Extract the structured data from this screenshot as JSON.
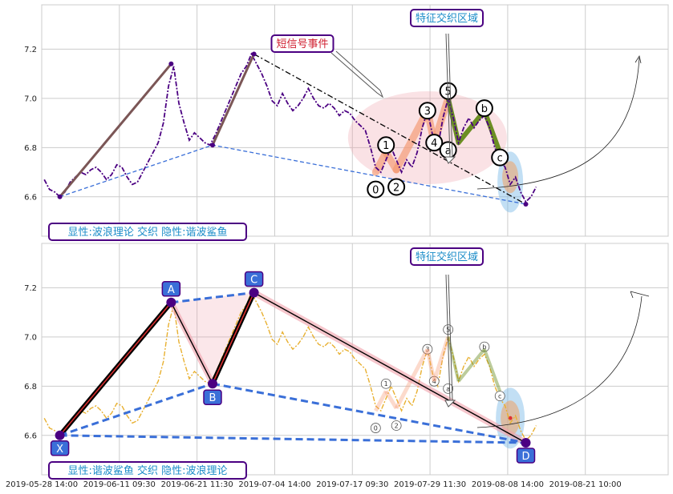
{
  "chart_data": {
    "type": "line",
    "x_ticks": [
      "2019-05-28 14:00",
      "2019-06-11 09:30",
      "2019-06-21 11:30",
      "2019-07-04 14:00",
      "2019-07-17 09:30",
      "2019-07-29 11:30",
      "2019-08-08 14:00",
      "2019-08-21 10:00"
    ],
    "y_ticks": [
      "6.6",
      "6.8",
      "7.0",
      "7.2"
    ],
    "ylim": [
      6.44,
      7.38
    ],
    "grid": true,
    "colors": {
      "price_top": "#4b0082",
      "price_bottom": "#e8b030",
      "wave": "#7b5656",
      "green": "#6b8e23",
      "box_text": "#1a8cc8",
      "box_border": "#4b0082",
      "pattern_label_bg": "#3a6fd8",
      "harmonic_dash": "#3a6fd8"
    },
    "price_series": [
      [
        0.5,
        6.67
      ],
      [
        1.5,
        6.63
      ],
      [
        2.5,
        6.62
      ],
      [
        3.5,
        6.6
      ],
      [
        4.5,
        6.62
      ],
      [
        5.5,
        6.66
      ],
      [
        6.5,
        6.68
      ],
      [
        7.5,
        6.7
      ],
      [
        8.5,
        6.69
      ],
      [
        9.5,
        6.71
      ],
      [
        10.5,
        6.72
      ],
      [
        11.5,
        6.7
      ],
      [
        12.5,
        6.67
      ],
      [
        13.5,
        6.69
      ],
      [
        14.5,
        6.73
      ],
      [
        15.5,
        6.72
      ],
      [
        16.5,
        6.68
      ],
      [
        17.5,
        6.65
      ],
      [
        18.5,
        6.66
      ],
      [
        19.5,
        6.7
      ],
      [
        20.5,
        6.74
      ],
      [
        21.5,
        6.78
      ],
      [
        22.5,
        6.82
      ],
      [
        23.5,
        6.9
      ],
      [
        24.5,
        7.05
      ],
      [
        25.5,
        7.13
      ],
      [
        26.5,
        6.98
      ],
      [
        27.5,
        6.9
      ],
      [
        28.5,
        6.83
      ],
      [
        29.5,
        6.86
      ],
      [
        30.5,
        6.84
      ],
      [
        31.5,
        6.82
      ],
      [
        32.5,
        6.81
      ],
      [
        33.5,
        6.85
      ],
      [
        34.5,
        6.9
      ],
      [
        35.5,
        6.95
      ],
      [
        36.5,
        7.0
      ],
      [
        37.5,
        7.05
      ],
      [
        38.5,
        7.1
      ],
      [
        39.5,
        7.13
      ],
      [
        40.5,
        7.18
      ],
      [
        41.5,
        7.14
      ],
      [
        42.5,
        7.1
      ],
      [
        43.5,
        7.05
      ],
      [
        44.5,
        6.99
      ],
      [
        45.5,
        6.97
      ],
      [
        46.5,
        7.02
      ],
      [
        47.5,
        6.98
      ],
      [
        48.5,
        6.95
      ],
      [
        49.5,
        6.97
      ],
      [
        50.5,
        7.0
      ],
      [
        51.5,
        7.04
      ],
      [
        52.5,
        7.0
      ],
      [
        53.5,
        6.97
      ],
      [
        54.5,
        6.96
      ],
      [
        55.5,
        6.98
      ],
      [
        56.5,
        6.96
      ],
      [
        57.5,
        6.93
      ],
      [
        58.5,
        6.95
      ],
      [
        59.5,
        6.94
      ],
      [
        60.5,
        6.91
      ],
      [
        61.5,
        6.89
      ],
      [
        62.5,
        6.87
      ],
      [
        63.5,
        6.8
      ],
      [
        64.5,
        6.72
      ],
      [
        65.5,
        6.7
      ],
      [
        66.5,
        6.75
      ],
      [
        67.5,
        6.8
      ],
      [
        68.5,
        6.75
      ],
      [
        69.5,
        6.7
      ],
      [
        70.5,
        6.75
      ],
      [
        71.5,
        6.72
      ],
      [
        72.5,
        6.78
      ],
      [
        73.5,
        6.88
      ],
      [
        74.5,
        6.95
      ],
      [
        75.5,
        6.85
      ],
      [
        76.5,
        6.8
      ],
      [
        77.5,
        6.92
      ],
      [
        78.5,
        7.0
      ],
      [
        79.5,
        6.92
      ],
      [
        80.5,
        6.82
      ],
      [
        81.5,
        6.88
      ],
      [
        82.5,
        6.92
      ],
      [
        83.5,
        6.88
      ],
      [
        84.5,
        6.91
      ],
      [
        85.5,
        6.93
      ],
      [
        86.5,
        6.88
      ],
      [
        87.5,
        6.8
      ],
      [
        88.5,
        6.75
      ],
      [
        89.5,
        6.72
      ],
      [
        90.5,
        6.65
      ],
      [
        91.5,
        6.68
      ],
      [
        92.5,
        6.62
      ],
      [
        93.5,
        6.58
      ],
      [
        94.5,
        6.6
      ],
      [
        95.5,
        6.64
      ]
    ],
    "top_panel": {
      "wave_legs": [
        [
          [
            3.5,
            6.6
          ],
          [
            25.0,
            7.14
          ]
        ],
        [
          [
            33.0,
            6.81
          ],
          [
            41.0,
            7.18
          ]
        ]
      ],
      "trend_dashdot": [
        [
          41.0,
          7.18
        ],
        [
          93.5,
          6.57
        ]
      ],
      "trend_dashed": [
        [
          3.5,
          6.6
        ],
        [
          33.0,
          6.81
        ],
        [
          93.5,
          6.57
        ]
      ],
      "orange_legs": [
        [
          [
            64.5,
            6.7
          ],
          [
            66.5,
            6.78
          ]
        ],
        [
          [
            66.5,
            6.78
          ],
          [
            68.5,
            6.71
          ]
        ],
        [
          [
            68.5,
            6.71
          ],
          [
            74.5,
            6.95
          ]
        ],
        [
          [
            74.5,
            6.95
          ],
          [
            75.8,
            6.82
          ]
        ],
        [
          [
            75.8,
            6.82
          ],
          [
            78.5,
            7.0
          ]
        ]
      ],
      "green_legs": [
        [
          [
            78.5,
            7.0
          ],
          [
            80.5,
            6.82
          ]
        ],
        [
          [
            80.5,
            6.82
          ],
          [
            85.5,
            6.95
          ]
        ],
        [
          [
            85.5,
            6.95
          ],
          [
            88.5,
            6.78
          ]
        ]
      ],
      "wave_points": [
        {
          "label": "0",
          "x": 64.5,
          "y": 6.63
        },
        {
          "label": "1",
          "x": 66.5,
          "y": 6.81
        },
        {
          "label": "2",
          "x": 68.5,
          "y": 6.64
        },
        {
          "label": "3",
          "x": 74.5,
          "y": 6.95
        },
        {
          "label": "4",
          "x": 75.8,
          "y": 6.82
        },
        {
          "label": "5",
          "x": 78.5,
          "y": 7.03
        },
        {
          "label": "a",
          "x": 78.5,
          "y": 6.79
        },
        {
          "label": "b",
          "x": 85.5,
          "y": 6.96
        },
        {
          "label": "c",
          "x": 88.5,
          "y": 6.76
        }
      ],
      "box_event": "短信号事件",
      "box_zone": "特征交织区域",
      "box_bottom": "显性:波浪理论 交织 隐性:谐波鲨鱼"
    },
    "bottom_panel": {
      "xabcd": [
        {
          "label": "X",
          "x": 3.5,
          "y": 6.6
        },
        {
          "label": "A",
          "x": 25.0,
          "y": 7.14
        },
        {
          "label": "B",
          "x": 33.0,
          "y": 6.81
        },
        {
          "label": "C",
          "x": 41.0,
          "y": 7.18
        },
        {
          "label": "D",
          "x": 93.5,
          "y": 6.57
        }
      ],
      "box_zone": "特征交织区域",
      "box_bottom": "显性:谐波鲨鱼 交织 隐性:波浪理论"
    }
  }
}
